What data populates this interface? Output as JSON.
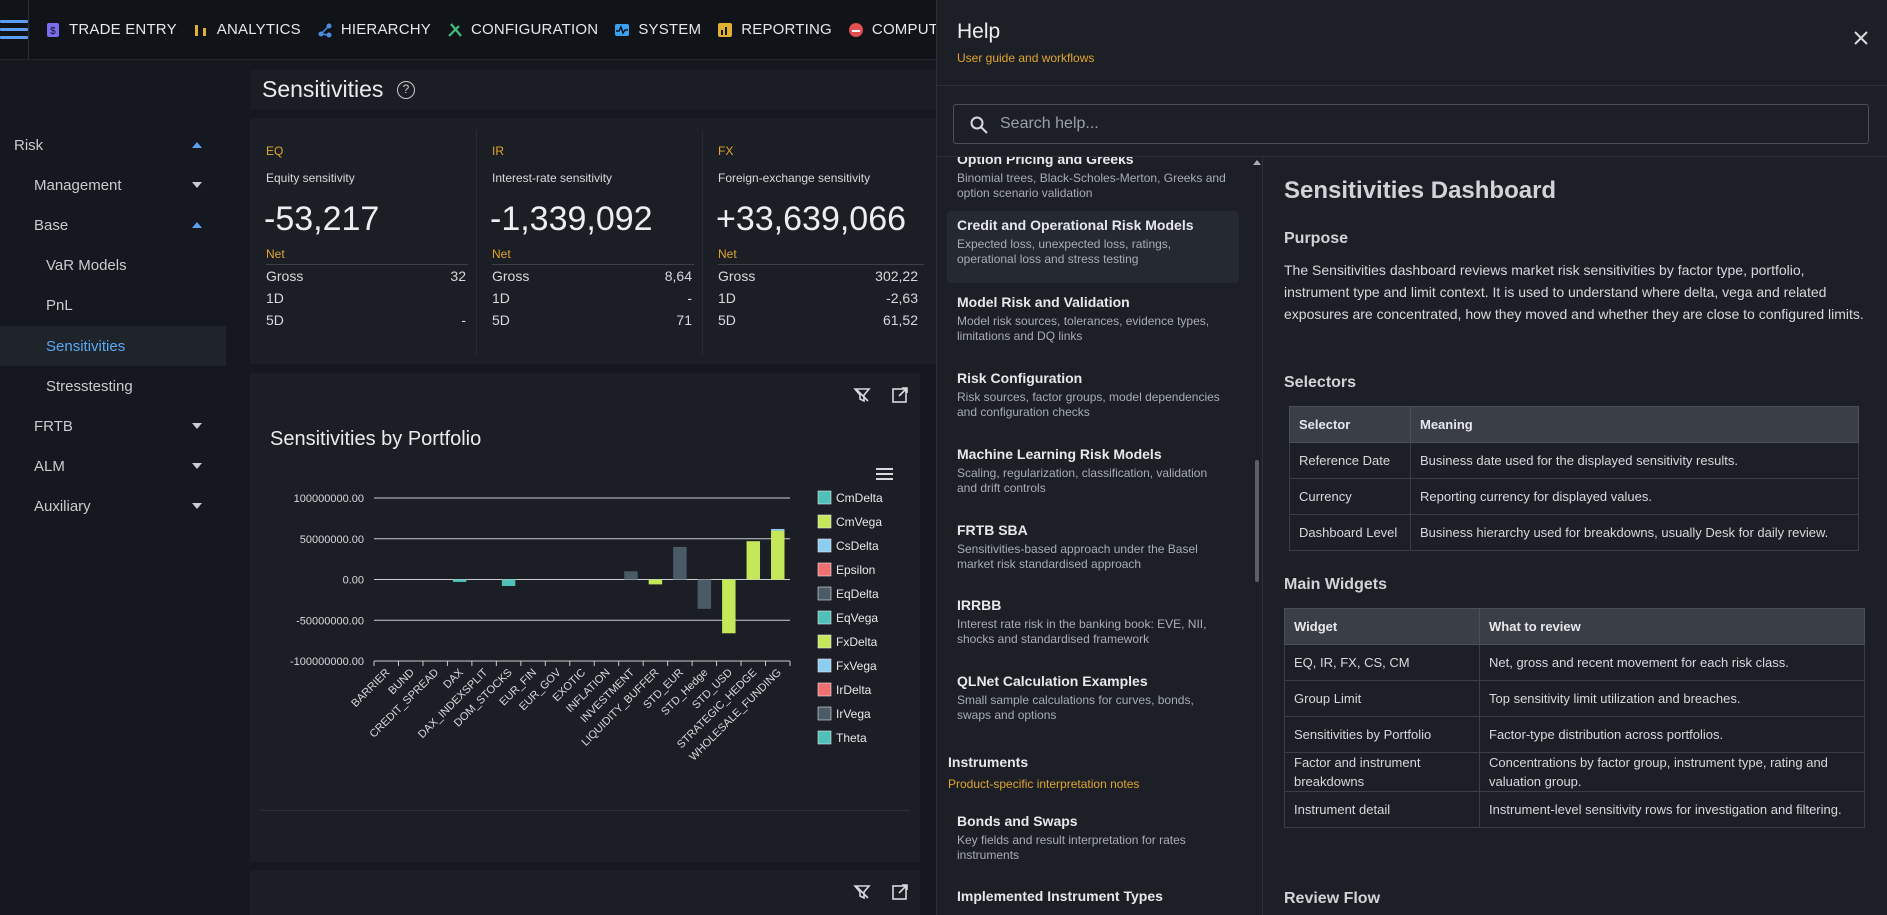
{
  "topnav": {
    "items": [
      {
        "label": "TRADE ENTRY",
        "icon": "dollar-doc-icon",
        "color": "#7b6cf0"
      },
      {
        "label": "ANALYTICS",
        "icon": "analytics-bars-icon",
        "color": "#e0b030"
      },
      {
        "label": "HIERARCHY",
        "icon": "hierarchy-icon",
        "color": "#4a90e2"
      },
      {
        "label": "CONFIGURATION",
        "icon": "tools-icon",
        "color": "#3fbf7f"
      },
      {
        "label": "SYSTEM",
        "icon": "system-pulse-icon",
        "color": "#3aa0f0"
      },
      {
        "label": "REPORTING",
        "icon": "report-icon",
        "color": "#e0b030"
      },
      {
        "label": "COMPUTE",
        "icon": "compute-icon",
        "color": "#e05050"
      }
    ]
  },
  "sidebar": {
    "items": [
      {
        "label": "Risk",
        "level": 0,
        "caret": "up"
      },
      {
        "label": "Management",
        "level": 1,
        "caret": "down"
      },
      {
        "label": "Base",
        "level": 1,
        "caret": "up"
      },
      {
        "label": "VaR Models",
        "level": 2,
        "caret": ""
      },
      {
        "label": "PnL",
        "level": 2,
        "caret": ""
      },
      {
        "label": "Sensitivities",
        "level": 2,
        "caret": "",
        "active": true
      },
      {
        "label": "Stresstesting",
        "level": 2,
        "caret": ""
      },
      {
        "label": "FRTB",
        "level": 1,
        "caret": "down"
      },
      {
        "label": "ALM",
        "level": 1,
        "caret": "down"
      },
      {
        "label": "Auxiliary",
        "level": 1,
        "caret": "down"
      }
    ]
  },
  "page": {
    "title": "Sensitivities",
    "help_glyph": "?"
  },
  "cards": [
    {
      "class": "EQ",
      "desc": "Equity sensitivity",
      "value": "-53,217",
      "net": "Net",
      "gross_label": "Gross",
      "gross": "32",
      "d1_label": "1D",
      "d1": "",
      "d5_label": "5D",
      "d5": "-"
    },
    {
      "class": "IR",
      "desc": "Interest-rate sensitivity",
      "value": "-1,339,092",
      "net": "Net",
      "gross_label": "Gross",
      "gross": "8,64",
      "d1_label": "1D",
      "d1": "-",
      "d5_label": "5D",
      "d5": "71"
    },
    {
      "class": "FX",
      "desc": "Foreign-exchange sensitivity",
      "value": "+33,639,066",
      "net": "Net",
      "gross_label": "Gross",
      "gross": "302,22",
      "d1_label": "1D",
      "d1": "-2,63",
      "d5_label": "5D",
      "d5": "61,52"
    }
  ],
  "chart": {
    "title": "Sensitivities by Portfolio"
  },
  "chart_data": {
    "type": "bar",
    "title": "Sensitivities by Portfolio",
    "stacked": true,
    "ylim": [
      -100000000,
      100000000
    ],
    "yticks": [
      "100000000.00",
      "50000000.00",
      "0.00",
      "-50000000.00",
      "-100000000.00"
    ],
    "categories": [
      "BARRIER",
      "BUND",
      "CREDIT_SPREAD",
      "DAX",
      "DAX_INDEXSPLIT",
      "DOM_STOCKS",
      "EUR_FIN",
      "EUR_GOV",
      "EXOTIC",
      "INFLATION",
      "INVESTMENT",
      "LIQUIDITY_BUFFER",
      "STD_EUR",
      "STD_Hedge",
      "STD_USD",
      "STRATEGIC_HEDGE",
      "WHOLESALE_FUNDING"
    ],
    "legend_position": "right",
    "series": [
      {
        "name": "CmDelta",
        "color": "#4fc1b8",
        "values": [
          0,
          0,
          0,
          -3000000,
          0,
          -8000000,
          0,
          0,
          0,
          0,
          0,
          0,
          0,
          0,
          0,
          0,
          0
        ]
      },
      {
        "name": "CmVega",
        "color": "#c5e85a",
        "values": [
          0,
          0,
          0,
          0,
          0,
          0,
          0,
          0,
          0,
          0,
          0,
          -6000000,
          0,
          0,
          -66000000,
          47000000,
          60000000
        ]
      },
      {
        "name": "CsDelta",
        "color": "#8ecdf2",
        "values": [
          0,
          0,
          0,
          0,
          0,
          0,
          0,
          0,
          0,
          0,
          0,
          0,
          0,
          0,
          0,
          0,
          2000000
        ]
      },
      {
        "name": "Epsilon",
        "color": "#f07070",
        "values": [
          0,
          0,
          0,
          0,
          0,
          0,
          0,
          0,
          0,
          0,
          0,
          0,
          0,
          0,
          0,
          0,
          0
        ]
      },
      {
        "name": "EqDelta",
        "color": "#4a5a66",
        "values": [
          0,
          0,
          0,
          0,
          0,
          0,
          0,
          0,
          0,
          0,
          10000000,
          0,
          40000000,
          -36000000,
          0,
          0,
          0
        ]
      },
      {
        "name": "EqVega",
        "color": "#4fc1b8",
        "values": [
          0,
          0,
          0,
          0,
          0,
          0,
          0,
          0,
          0,
          0,
          0,
          0,
          0,
          0,
          0,
          0,
          0
        ]
      },
      {
        "name": "FxDelta",
        "color": "#c5e85a",
        "values": [
          0,
          0,
          0,
          0,
          0,
          0,
          0,
          0,
          0,
          0,
          0,
          0,
          0,
          0,
          0,
          0,
          0
        ]
      },
      {
        "name": "FxVega",
        "color": "#8ecdf2",
        "values": [
          0,
          0,
          0,
          0,
          0,
          0,
          0,
          0,
          0,
          0,
          0,
          0,
          0,
          0,
          0,
          0,
          0
        ]
      },
      {
        "name": "IrDelta",
        "color": "#f07070",
        "values": [
          0,
          0,
          0,
          0,
          0,
          0,
          0,
          0,
          0,
          0,
          0,
          0,
          0,
          0,
          0,
          0,
          0
        ]
      },
      {
        "name": "IrVega",
        "color": "#4a5a66",
        "values": [
          0,
          0,
          0,
          0,
          0,
          0,
          0,
          0,
          0,
          0,
          0,
          0,
          0,
          0,
          0,
          0,
          0
        ]
      },
      {
        "name": "Theta",
        "color": "#4fc1b8",
        "values": [
          0,
          0,
          0,
          0,
          0,
          0,
          0,
          0,
          0,
          0,
          0,
          0,
          0,
          0,
          0,
          0,
          0
        ]
      }
    ]
  },
  "help": {
    "title": "Help",
    "subtitle": "User guide and workflows",
    "search_placeholder": "Search help...",
    "toc": [
      {
        "title": "Option Pricing and Greeks",
        "desc": "Binomial trees, Black-Scholes-Merton, Greeks and option scenario validation"
      },
      {
        "title": "Credit and Operational Risk Models",
        "desc": "Expected loss, unexpected loss, ratings, operational loss and stress testing",
        "selected": true
      },
      {
        "title": "Model Risk and Validation",
        "desc": "Model risk sources, tolerances, evidence types, limitations and DQ links"
      },
      {
        "title": "Risk Configuration",
        "desc": "Risk sources, factor groups, model dependencies and configuration checks"
      },
      {
        "title": "Machine Learning Risk Models",
        "desc": "Scaling, regularization, classification, validation and drift controls"
      },
      {
        "title": "FRTB SBA",
        "desc": "Sensitivities-based approach under the Basel market risk standardised approach"
      },
      {
        "title": "IRRBB",
        "desc": "Interest rate risk in the banking book: EVE, NII, shocks and standardised framework"
      },
      {
        "title": "QLNet Calculation Examples",
        "desc": "Small sample calculations for curves, bonds, swaps and options"
      }
    ],
    "group": {
      "title": "Instruments",
      "subtitle": "Product-specific interpretation notes"
    },
    "group_items": [
      {
        "title": "Bonds and Swaps",
        "desc": "Key fields and result interpretation for rates instruments"
      },
      {
        "title": "Implemented Instrument Types",
        "desc": ""
      }
    ],
    "article": {
      "title": "Sensitivities Dashboard",
      "purpose_h": "Purpose",
      "purpose": "The Sensitivities dashboard reviews market risk sensitivities by factor type, portfolio, instrument type and limit context. It is used to understand where delta, vega and related exposures are concentrated, how they moved and whether they are close to configured limits.",
      "selectors_h": "Selectors",
      "selectors_cols": [
        "Selector",
        "Meaning"
      ],
      "selectors": [
        [
          "Reference Date",
          "Business date used for the displayed sensitivity results."
        ],
        [
          "Currency",
          "Reporting currency for displayed values."
        ],
        [
          "Dashboard Level",
          "Business hierarchy used for breakdowns, usually Desk for daily review."
        ]
      ],
      "widgets_h": "Main Widgets",
      "widgets_cols": [
        "Widget",
        "What to review"
      ],
      "widgets": [
        [
          "EQ, IR, FX, CS, CM",
          "Net, gross and recent movement for each risk class."
        ],
        [
          "Group Limit",
          "Top sensitivity limit utilization and breaches."
        ],
        [
          "Sensitivities by Portfolio",
          "Factor-type distribution across portfolios."
        ],
        [
          "Factor and instrument breakdowns",
          "Concentrations by factor group, instrument type, rating and valuation group."
        ],
        [
          "Instrument detail",
          "Instrument-level sensitivity rows for investigation and filtering."
        ]
      ],
      "review_h": "Review Flow"
    }
  }
}
